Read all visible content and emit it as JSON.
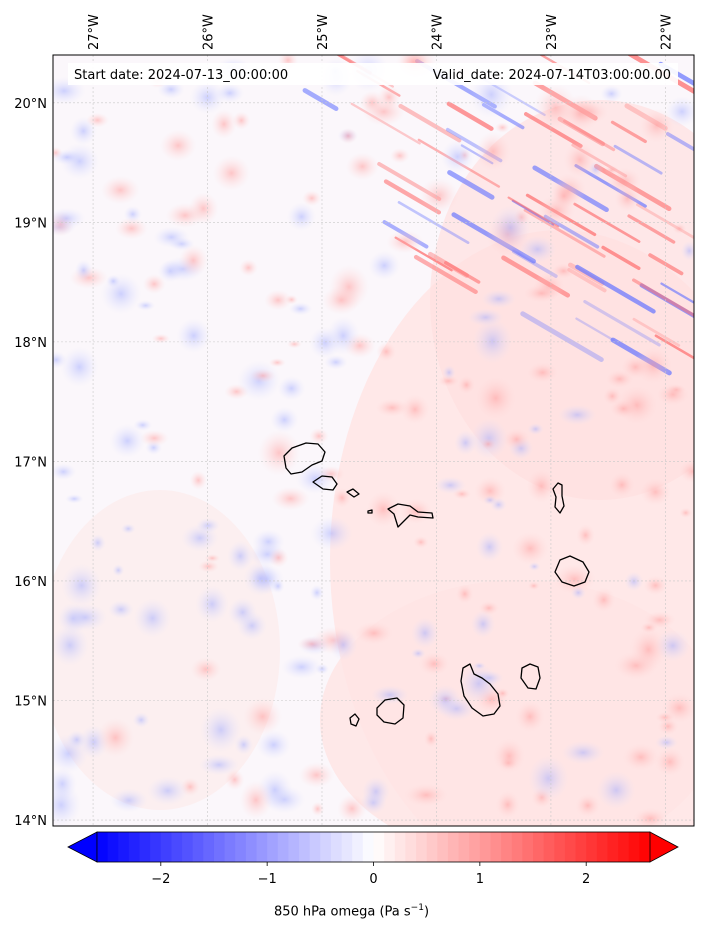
{
  "map": {
    "start_date_label": "Start date: 2024-07-13_00:00:00",
    "valid_date_label": "Valid_date: 2024-07-14T03:00:00.00",
    "lon_ticks": [
      "27°W",
      "26°W",
      "25°W",
      "24°W",
      "23°W",
      "22°W"
    ],
    "lat_ticks": [
      "20°N",
      "19°N",
      "18°N",
      "17°N",
      "16°N",
      "15°N",
      "14°N"
    ],
    "lon_range": [
      -27.35,
      -21.75
    ],
    "lat_range": [
      13.95,
      20.4
    ]
  },
  "colorbar": {
    "label_text": "850 hPa omega (Pa s",
    "label_exponent": "−1",
    "label_suffix": ")",
    "ticks": [
      "−2",
      "−1",
      "0",
      "1",
      "2"
    ],
    "range": [
      -2.6,
      2.6
    ],
    "colormap": "bwr",
    "low_color": "#0000ff",
    "mid_color": "#ffffff",
    "high_color": "#ff0000"
  },
  "colors": {
    "frame": "#000000",
    "gridline": "#c8c8c8",
    "coastline": "#000000"
  }
}
